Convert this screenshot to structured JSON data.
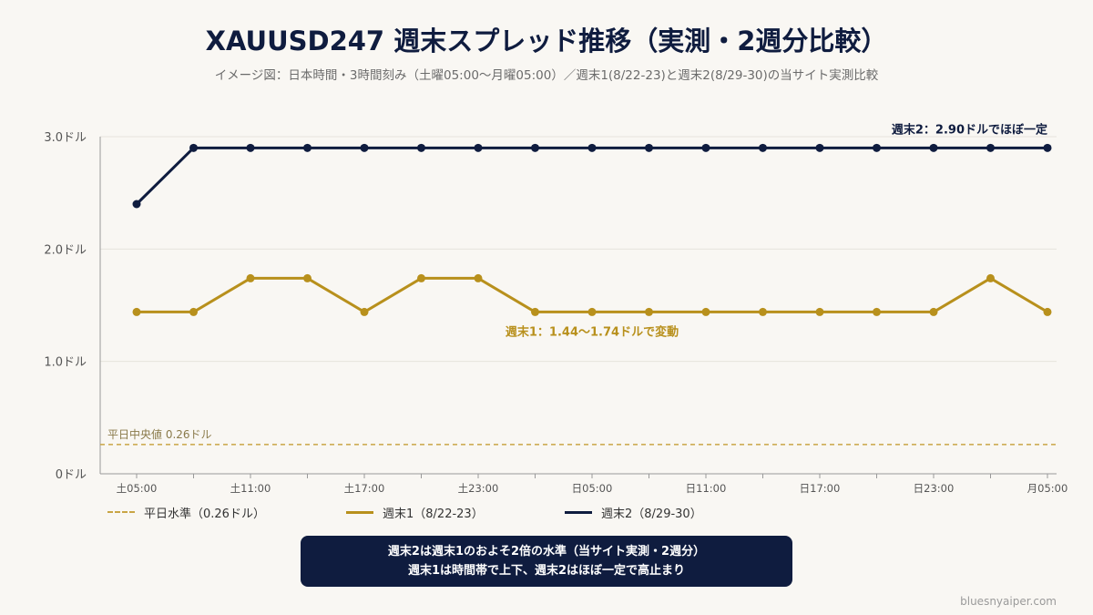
{
  "title": "XAUUSD247 週末スプレッド推移（実測・2週分比較）",
  "subtitle": "イメージ図：日本時間・3時間刻み（土曜05:00〜月曜05:00）／週末1(8/22-23)と週末2(8/29-30)の当サイト実測比較",
  "chart_data": {
    "type": "line",
    "x_ticks": [
      "土05:00",
      "土11:00",
      "土17:00",
      "土23:00",
      "日05:00",
      "日11:00",
      "日17:00",
      "日23:00",
      "月05:00"
    ],
    "y_ticks": [
      "0ドル",
      "1.0ドル",
      "2.0ドル",
      "3.0ドル"
    ],
    "ylim": [
      0,
      3.0
    ],
    "grid": true,
    "series": [
      {
        "name": "週末1（8/22-23）",
        "color": "#b8901c",
        "values": [
          1.44,
          1.44,
          1.74,
          1.74,
          1.44,
          1.74,
          1.74,
          1.44,
          1.44,
          1.44,
          1.44,
          1.44,
          1.44,
          1.44,
          1.44,
          1.74,
          1.44
        ]
      },
      {
        "name": "週末2（8/29-30）",
        "color": "#0f1c3f",
        "values": [
          2.4,
          2.9,
          2.9,
          2.9,
          2.9,
          2.9,
          2.9,
          2.9,
          2.9,
          2.9,
          2.9,
          2.9,
          2.9,
          2.9,
          2.9,
          2.9,
          2.9
        ]
      }
    ],
    "reference": {
      "name": "平日水準（0.26ドル）",
      "value": 0.26,
      "label": "平日中央値 0.26ドル",
      "color": "#c9a545"
    },
    "annotations": [
      {
        "text": "週末2：2.90ドルでほぼ一定",
        "color": "#0f1c3f"
      },
      {
        "text": "週末1：1.44〜1.74ドルで変動",
        "color": "#b8901c"
      }
    ]
  },
  "note": {
    "line1": "週末2は週末1のおよそ2倍の水準（当サイト実測・2週分）",
    "line2": "週末1は時間帯で上下、週末2はほぼ一定で高止まり"
  },
  "footer": "bluesnyaiper.com"
}
